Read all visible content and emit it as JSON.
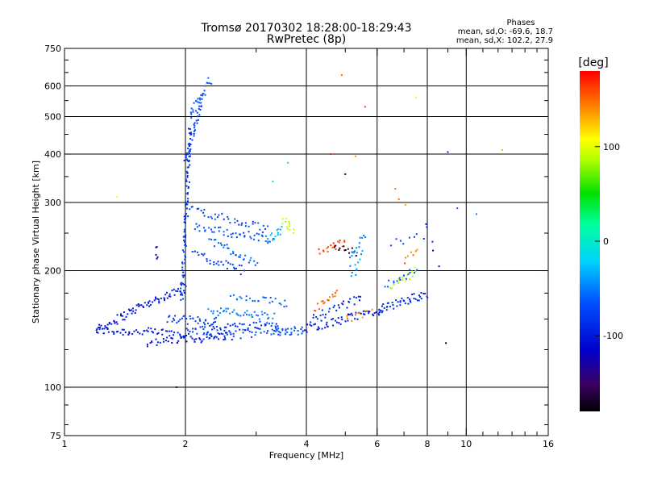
{
  "chart_data": {
    "type": "scatter",
    "title": "Tromsø 20170302 18:28:00-18:29:43",
    "subtitle": "RwPretec (8p)",
    "stats_header": "Phases",
    "stats_lines": [
      "mean, sd,O: -69.6, 18.7",
      "mean, sd,X: 102.2, 27.9"
    ],
    "xlabel": "Frequency [MHz]",
    "ylabel": "Stationary phase Virtual Height [km]",
    "xscale": "log",
    "yscale": "log",
    "xlim": [
      1,
      16
    ],
    "ylim": [
      75,
      750
    ],
    "x_ticks": [
      1,
      2,
      4,
      6,
      8,
      10,
      16
    ],
    "x_tick_labels": [
      "1",
      "2",
      "4",
      "6",
      "8",
      "10",
      "16"
    ],
    "x_gridlines": [
      2,
      4,
      6,
      8,
      10
    ],
    "y_ticks": [
      75,
      100,
      200,
      300,
      400,
      500,
      600,
      750
    ],
    "y_tick_labels": [
      "75",
      "100",
      "200",
      "300",
      "400",
      "500",
      "600",
      "750"
    ],
    "y_gridlines": [
      100,
      200,
      300,
      400,
      500,
      600
    ],
    "grid": true,
    "colorbar": {
      "label": "[deg]",
      "range": [
        -180,
        180
      ],
      "ticks": [
        -100,
        0,
        100
      ],
      "tick_labels": [
        "-100",
        "0",
        "100"
      ],
      "colormap": "rainbow"
    },
    "series": [
      {
        "traces": [
          {
            "x": [
              1.2,
              2.0
            ],
            "y": [
              140,
              138
            ],
            "c": [
              -105,
              -95
            ],
            "n": 55
          },
          {
            "x": [
              1.2,
              1.55
            ],
            "y": [
              140,
              162
            ],
            "c": [
              -105,
              -100
            ],
            "n": 40
          },
          {
            "x": [
              1.55,
              2.0
            ],
            "y": [
              162,
              180
            ],
            "c": [
              -100,
              -95
            ],
            "n": 40
          },
          {
            "x": [
              1.6,
              2.6
            ],
            "y": [
              130,
              136
            ],
            "c": [
              -110,
              -95
            ],
            "n": 50
          },
          {
            "x": [
              1.8,
              2.4
            ],
            "y": [
              150,
              148
            ],
            "c": [
              -90,
              -70
            ],
            "n": 35
          },
          {
            "x": [
              2.0,
              3.4
            ],
            "y": [
              140,
              146
            ],
            "c": [
              -95,
              -70
            ],
            "n": 60
          },
          {
            "x": [
              2.2,
              3.6
            ],
            "y": [
              135,
              140
            ],
            "c": [
              -80,
              -60
            ],
            "n": 40
          },
          {
            "x": [
              2.3,
              3.3
            ],
            "y": [
              158,
              152
            ],
            "c": [
              -60,
              -40
            ],
            "n": 40
          },
          {
            "x": [
              2.6,
              3.6
            ],
            "y": [
              170,
              165
            ],
            "c": [
              -70,
              -50
            ],
            "n": 25
          },
          {
            "x": [
              3.3,
              3.9
            ],
            "y": [
              140,
              140
            ],
            "c": [
              -70,
              -60
            ],
            "n": 25
          },
          {
            "x": [
              1.96,
              2.06
            ],
            "y": [
              170,
              470
            ],
            "c": [
              -95,
              -75
            ],
            "n": 90
          },
          {
            "x": [
              2.0,
              2.2
            ],
            "y": [
              380,
              560
            ],
            "c": [
              -85,
              -65
            ],
            "n": 40
          },
          {
            "x": [
              2.05,
              2.3
            ],
            "y": [
              500,
              620
            ],
            "c": [
              -70,
              -55
            ],
            "n": 25
          },
          {
            "x": [
              2.05,
              3.2
            ],
            "y": [
              290,
              255
            ],
            "c": [
              -85,
              -55
            ],
            "n": 40
          },
          {
            "x": [
              2.1,
              3.3
            ],
            "y": [
              260,
              240
            ],
            "c": [
              -80,
              -55
            ],
            "n": 45
          },
          {
            "x": [
              2.3,
              3.0
            ],
            "y": [
              240,
              210
            ],
            "c": [
              -70,
              -50
            ],
            "n": 30
          },
          {
            "x": [
              2.1,
              2.8
            ],
            "y": [
              220,
              200
            ],
            "c": [
              -90,
              -70
            ],
            "n": 30
          },
          {
            "x": [
              3.2,
              3.5
            ],
            "y": [
              240,
              255
            ],
            "c": [
              -40,
              -25
            ],
            "n": 15
          },
          {
            "x": [
              3.5,
              3.7
            ],
            "y": [
              270,
              255
            ],
            "c": [
              75,
              95
            ],
            "n": 12
          },
          {
            "x": [
              1.7,
              1.7
            ],
            "y": [
              210,
              230
            ],
            "c": [
              -130,
              -120
            ],
            "n": 5
          },
          {
            "x": [
              3.9,
              6.2
            ],
            "y": [
              141,
              158
            ],
            "c": [
              -110,
              -90
            ],
            "n": 60
          },
          {
            "x": [
              4.1,
              5.5
            ],
            "y": [
              150,
              170
            ],
            "c": [
              -100,
              -80
            ],
            "n": 30
          },
          {
            "x": [
              4.2,
              4.8
            ],
            "y": [
              160,
              175
            ],
            "c": [
              140,
              165
            ],
            "n": 18
          },
          {
            "x": [
              4.3,
              5.0
            ],
            "y": [
              222,
              238
            ],
            "c": [
              150,
              170
            ],
            "n": 18
          },
          {
            "x": [
              4.7,
              5.3
            ],
            "y": [
              228,
              224
            ],
            "c": [
              -175,
              -160
            ],
            "n": 12
          },
          {
            "x": [
              5.1,
              5.6
            ],
            "y": [
              210,
              250
            ],
            "c": [
              -60,
              -40
            ],
            "n": 14
          },
          {
            "x": [
              5.2,
              5.5
            ],
            "y": [
              190,
              220
            ],
            "c": [
              -50,
              -30
            ],
            "n": 10
          },
          {
            "x": [
              5.0,
              5.8
            ],
            "y": [
              150,
              155
            ],
            "c": [
              135,
              160
            ],
            "n": 10
          },
          {
            "x": [
              6.0,
              8.0
            ],
            "y": [
              158,
              175
            ],
            "c": [
              -100,
              -80
            ],
            "n": 45
          },
          {
            "x": [
              6.5,
              7.5
            ],
            "y": [
              180,
              200
            ],
            "c": [
              70,
              100
            ],
            "n": 18
          },
          {
            "x": [
              6.3,
              7.5
            ],
            "y": [
              185,
              200
            ],
            "c": [
              -70,
              -50
            ],
            "n": 15
          },
          {
            "x": [
              7.0,
              7.6
            ],
            "y": [
              210,
              230
            ],
            "c": [
              130,
              160
            ],
            "n": 8
          },
          {
            "x": [
              6.5,
              7.8
            ],
            "y": [
              235,
              245
            ],
            "c": [
              -80,
              -70
            ],
            "n": 8
          },
          {
            "x": [
              6.6,
              7.0
            ],
            "y": [
              320,
              300
            ],
            "c": [
              130,
              155
            ],
            "n": 3
          },
          {
            "x": [
              7.9,
              8.5
            ],
            "y": [
              270,
              210
            ],
            "c": [
              -110,
              -90
            ],
            "n": 5
          }
        ]
      }
    ],
    "single_points": [
      {
        "x": 1.9,
        "y": 100,
        "c": -150
      },
      {
        "x": 4.9,
        "y": 640,
        "c": 150
      },
      {
        "x": 5.6,
        "y": 530,
        "c": 160
      },
      {
        "x": 7.5,
        "y": 560,
        "c": 110
      },
      {
        "x": 9.0,
        "y": 405,
        "c": -100
      },
      {
        "x": 12.3,
        "y": 410,
        "c": 130
      },
      {
        "x": 5.0,
        "y": 355,
        "c": -170
      },
      {
        "x": 4.6,
        "y": 400,
        "c": 170
      },
      {
        "x": 5.3,
        "y": 395,
        "c": 140
      },
      {
        "x": 8.9,
        "y": 130,
        "c": -170
      },
      {
        "x": 10.6,
        "y": 280,
        "c": -50
      },
      {
        "x": 9.5,
        "y": 290,
        "c": -60
      },
      {
        "x": 3.3,
        "y": 340,
        "c": 30
      },
      {
        "x": 3.6,
        "y": 380,
        "c": -10
      },
      {
        "x": 1.35,
        "y": 310,
        "c": 110
      }
    ]
  }
}
